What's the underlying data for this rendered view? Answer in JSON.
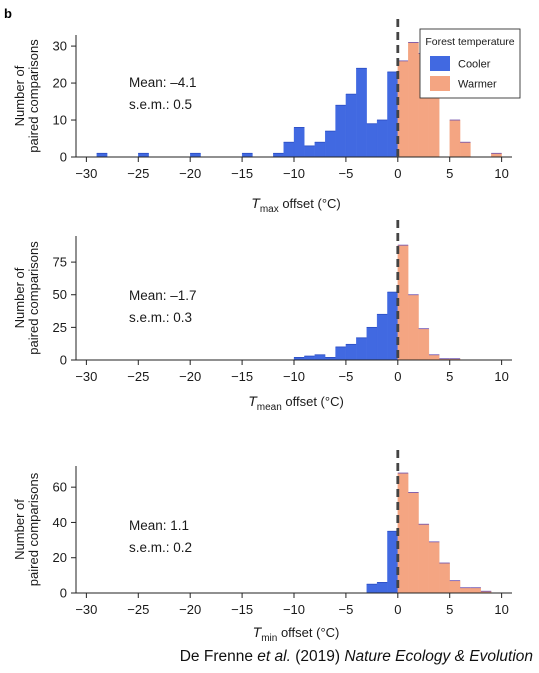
{
  "panel_label": "b",
  "legend": {
    "title": "Forest temperature",
    "items": [
      {
        "label": "Cooler",
        "color": "#4169e1"
      },
      {
        "label": "Warmer",
        "color": "#f4a582"
      }
    ]
  },
  "colors": {
    "cooler": "#4169e1",
    "warmer": "#f4a582",
    "zero_line": "#444444",
    "axis": "#222222"
  },
  "ylabel_line1": "Number of",
  "ylabel_line2": "paired comparisons",
  "xlabel_symbol": "T",
  "xlabel_suffix": " offset (°C)",
  "chart_data": [
    {
      "type": "bar",
      "subscript": "max",
      "stat_mean": "Mean: –4.1",
      "stat_sem": "s.e.m.: 0.5",
      "xlim": [
        -31,
        11
      ],
      "ylim": [
        0,
        33
      ],
      "xticks": [
        "−30",
        "−25",
        "−20",
        "−15",
        "−10",
        "−5",
        "0",
        "5",
        "10"
      ],
      "xtick_values": [
        -30,
        -25,
        -20,
        -15,
        -10,
        -5,
        0,
        5,
        10
      ],
      "yticks": [
        0,
        10,
        20,
        30
      ],
      "bins_start": -29,
      "bin_width": 1,
      "x_max": 9,
      "values": [
        1,
        0,
        0,
        0,
        1,
        0,
        0,
        0,
        0,
        1,
        0,
        0,
        0,
        0,
        1,
        0,
        0,
        1,
        4,
        8,
        3,
        4,
        7,
        14,
        17,
        24,
        9,
        10,
        23,
        26,
        31,
        28,
        24,
        0,
        10,
        4,
        0,
        0,
        1,
        0
      ]
    },
    {
      "type": "bar",
      "subscript": "mean",
      "stat_mean": "Mean: –1.7",
      "stat_sem": "s.e.m.: 0.3",
      "xlim": [
        -31,
        11
      ],
      "ylim": [
        0,
        95
      ],
      "xticks": [
        "−30",
        "−25",
        "−20",
        "−15",
        "−10",
        "−5",
        "0",
        "5",
        "10"
      ],
      "xtick_values": [
        -30,
        -25,
        -20,
        -15,
        -10,
        -5,
        0,
        5,
        10
      ],
      "yticks": [
        0,
        25,
        50,
        75
      ],
      "bins_start": -29,
      "bin_width": 1,
      "x_max": 9,
      "values": [
        0,
        0,
        0,
        0,
        0,
        0,
        0,
        0,
        0,
        0,
        0,
        0,
        0,
        0,
        0,
        0,
        0,
        0,
        0,
        2,
        3,
        4,
        2,
        10,
        12,
        17,
        25,
        35,
        52,
        88,
        50,
        24,
        4,
        1,
        1,
        0,
        0,
        0,
        0,
        0,
        0
      ]
    },
    {
      "type": "bar",
      "subscript": "min",
      "stat_mean": "Mean: 1.1",
      "stat_sem": "s.e.m.: 0.2",
      "xlim": [
        -31,
        11
      ],
      "ylim": [
        0,
        72
      ],
      "xticks": [
        "−30",
        "−25",
        "−20",
        "−15",
        "−10",
        "−5",
        "0",
        "5",
        "10"
      ],
      "xtick_values": [
        -30,
        -25,
        -20,
        -15,
        -10,
        -5,
        0,
        5,
        10
      ],
      "yticks": [
        0,
        20,
        40,
        60
      ],
      "bins_start": -29,
      "bin_width": 1,
      "x_max": 9,
      "values": [
        0,
        0,
        0,
        0,
        0,
        0,
        0,
        0,
        0,
        0,
        0,
        0,
        0,
        0,
        0,
        0,
        0,
        0,
        0,
        0,
        0,
        0,
        0,
        0,
        0,
        0,
        5,
        6,
        35,
        68,
        57,
        39,
        29,
        17,
        7,
        3,
        3,
        1,
        0
      ]
    }
  ],
  "credit": {
    "prefix": "De Frenne ",
    "etal": "et al.",
    "year": " (2019) ",
    "journal": "Nature Ecology & Evolution"
  }
}
